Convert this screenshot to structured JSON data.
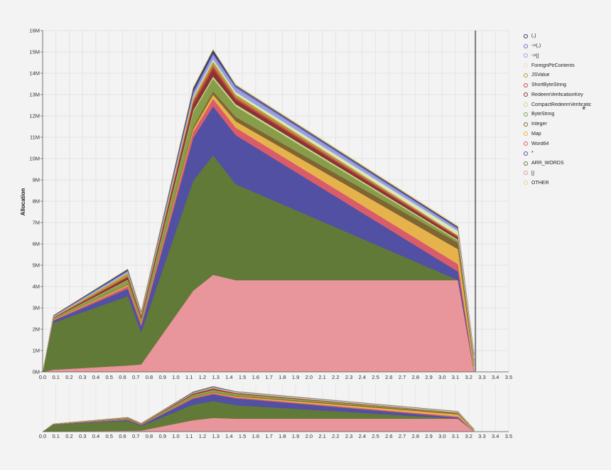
{
  "chart_data": [
    {
      "type": "area",
      "stacked": true,
      "ylabel": "Allocation",
      "ylim": [
        0,
        16
      ],
      "xlim": [
        0,
        3.5
      ],
      "y_tick_labels": [
        "0M",
        "1M",
        "2M",
        "3M",
        "4M",
        "5M",
        "6M",
        "7M",
        "8M",
        "9M",
        "10M",
        "11M",
        "12M",
        "13M",
        "14M",
        "15M",
        "16M"
      ],
      "x_tick_labels": [
        "0.0",
        "0.1",
        "0.2",
        "0.3",
        "0.4",
        "0.5",
        "0.6",
        "0.7",
        "0.8",
        "0.9",
        "1.0",
        "1.1",
        "1.2",
        "1.3",
        "1.4",
        "1.5",
        "1.6",
        "1.7",
        "1.8",
        "1.9",
        "2.0",
        "2.1",
        "2.2",
        "2.3",
        "2.4",
        "2.5",
        "2.6",
        "2.7",
        "2.8",
        "2.9",
        "3.0",
        "3.1",
        "3.2",
        "3.3",
        "3.4",
        "3.5"
      ],
      "grid": true,
      "legend_position": "right",
      "marker_x": 3.25,
      "x": [
        0.0,
        0.08,
        0.64,
        0.74,
        1.13,
        1.28,
        1.45,
        3.12,
        3.24
      ],
      "series": [
        {
          "name": "[]",
          "color": "#e8959c",
          "values": [
            0,
            0.1,
            0.3,
            0.35,
            3.8,
            4.55,
            4.3,
            4.3,
            0
          ]
        },
        {
          "name": "ARR_WORDS",
          "color": "#627a38",
          "values": [
            0,
            2.2,
            3.25,
            1.5,
            5.15,
            5.6,
            4.5,
            0,
            0
          ]
        },
        {
          "name": "*",
          "color": "#5150a3",
          "values": [
            0,
            0.1,
            0.35,
            0.3,
            2.0,
            2.3,
            2.3,
            0.4,
            0
          ]
        },
        {
          "name": "Word64",
          "color": "#d95c6b",
          "values": [
            0,
            0.03,
            0.12,
            0.1,
            0.3,
            0.35,
            0.35,
            0.35,
            0.08
          ]
        },
        {
          "name": "Map",
          "color": "#e6b24c",
          "values": [
            0,
            0.02,
            0.06,
            0.05,
            0.12,
            0.2,
            0.3,
            0.7,
            0.2
          ]
        },
        {
          "name": "Integer",
          "color": "#7f6532",
          "values": [
            0,
            0.01,
            0.02,
            0.02,
            0.1,
            0.15,
            0.2,
            0.3,
            0.1
          ]
        },
        {
          "name": "ByteString",
          "color": "#889c49",
          "values": [
            0,
            0.04,
            0.2,
            0.15,
            0.7,
            0.6,
            0.5,
            0.1,
            0.1
          ]
        },
        {
          "name": "CompactRedeemVerificationKey",
          "color": "#c5d78f",
          "values": [
            0,
            0.01,
            0.02,
            0.02,
            0.08,
            0.1,
            0.1,
            0.05,
            0.05
          ]
        },
        {
          "name": "RedeemVerificationKey",
          "color": "#883434",
          "values": [
            0,
            0.02,
            0.12,
            0.1,
            0.3,
            0.35,
            0.2,
            0.1,
            0.05
          ]
        },
        {
          "name": "ShortByteString",
          "color": "#c94444",
          "values": [
            0,
            0.01,
            0.04,
            0.03,
            0.12,
            0.15,
            0.1,
            0.05,
            0.02
          ]
        },
        {
          "name": "JSValue",
          "color": "#b59a36",
          "values": [
            0,
            0.03,
            0.15,
            0.1,
            0.15,
            0.2,
            0.15,
            0.05,
            0.02
          ]
        },
        {
          "name": "ForeignPtrContents",
          "color": "#dde6ba",
          "values": [
            0,
            0.01,
            0.02,
            0.02,
            0.08,
            0.1,
            0.12,
            0.2,
            0.1
          ]
        },
        {
          "name": "->[]",
          "color": "#9aa0de",
          "values": [
            0,
            0.03,
            0.08,
            0.06,
            0.15,
            0.2,
            0.2,
            0.1,
            0.1
          ]
        },
        {
          "name": "->(,)",
          "color": "#6f6fbf",
          "values": [
            0,
            0.02,
            0.03,
            0.02,
            0.1,
            0.1,
            0.08,
            0.05,
            0.05
          ]
        },
        {
          "name": "(,)",
          "color": "#333a6b",
          "values": [
            0,
            0.02,
            0.06,
            0.03,
            0.15,
            0.15,
            0.04,
            0.05,
            0.03
          ]
        },
        {
          "name": "OTHER",
          "color": "#e8d48a",
          "values": [
            0,
            0.01,
            0.02,
            0.02,
            0.05,
            0.05,
            0.05,
            0.05,
            0.02
          ]
        }
      ]
    },
    {
      "type": "area",
      "role": "overview",
      "x_tick_labels": [
        "0.0",
        "0.1",
        "0.2",
        "0.3",
        "0.4",
        "0.5",
        "0.6",
        "0.7",
        "0.8",
        "0.9",
        "1.0",
        "1.1",
        "1.2",
        "1.3",
        "1.4",
        "1.5",
        "1.6",
        "1.7",
        "1.8",
        "1.9",
        "2.0",
        "2.1",
        "2.2",
        "2.3",
        "2.4",
        "2.5",
        "2.6",
        "2.7",
        "2.8",
        "2.9",
        "3.0",
        "3.1",
        "3.2",
        "3.3",
        "3.4",
        "3.5"
      ]
    }
  ],
  "legend": {
    "items": [
      {
        "label": "(,)",
        "color": "#333a6b"
      },
      {
        "label": "->(,)",
        "color": "#6f6fbf"
      },
      {
        "label": "->[]",
        "color": "#9aa0de"
      },
      {
        "label": "ForeignPtrContents",
        "color": "#dde6ba"
      },
      {
        "label": "JSValue",
        "color": "#b59a36"
      },
      {
        "label": "ShortByteString",
        "color": "#c94444"
      },
      {
        "label": "RedeemVerificationKey",
        "color": "#883434"
      },
      {
        "label": "CompactRedeemVerificatic",
        "color": "#c5d78f"
      },
      {
        "label": "ByteString",
        "color": "#889c49"
      },
      {
        "label": "Integer",
        "color": "#7f6532"
      },
      {
        "label": "Map",
        "color": "#e6b24c"
      },
      {
        "label": "Word64",
        "color": "#d95c6b"
      },
      {
        "label": "*",
        "color": "#5150a3"
      },
      {
        "label": "ARR_WORDS",
        "color": "#627a38"
      },
      {
        "label": "[]",
        "color": "#e8959c"
      },
      {
        "label": "OTHER",
        "color": "#e8d48a"
      }
    ],
    "overflow_glyph": "e"
  }
}
